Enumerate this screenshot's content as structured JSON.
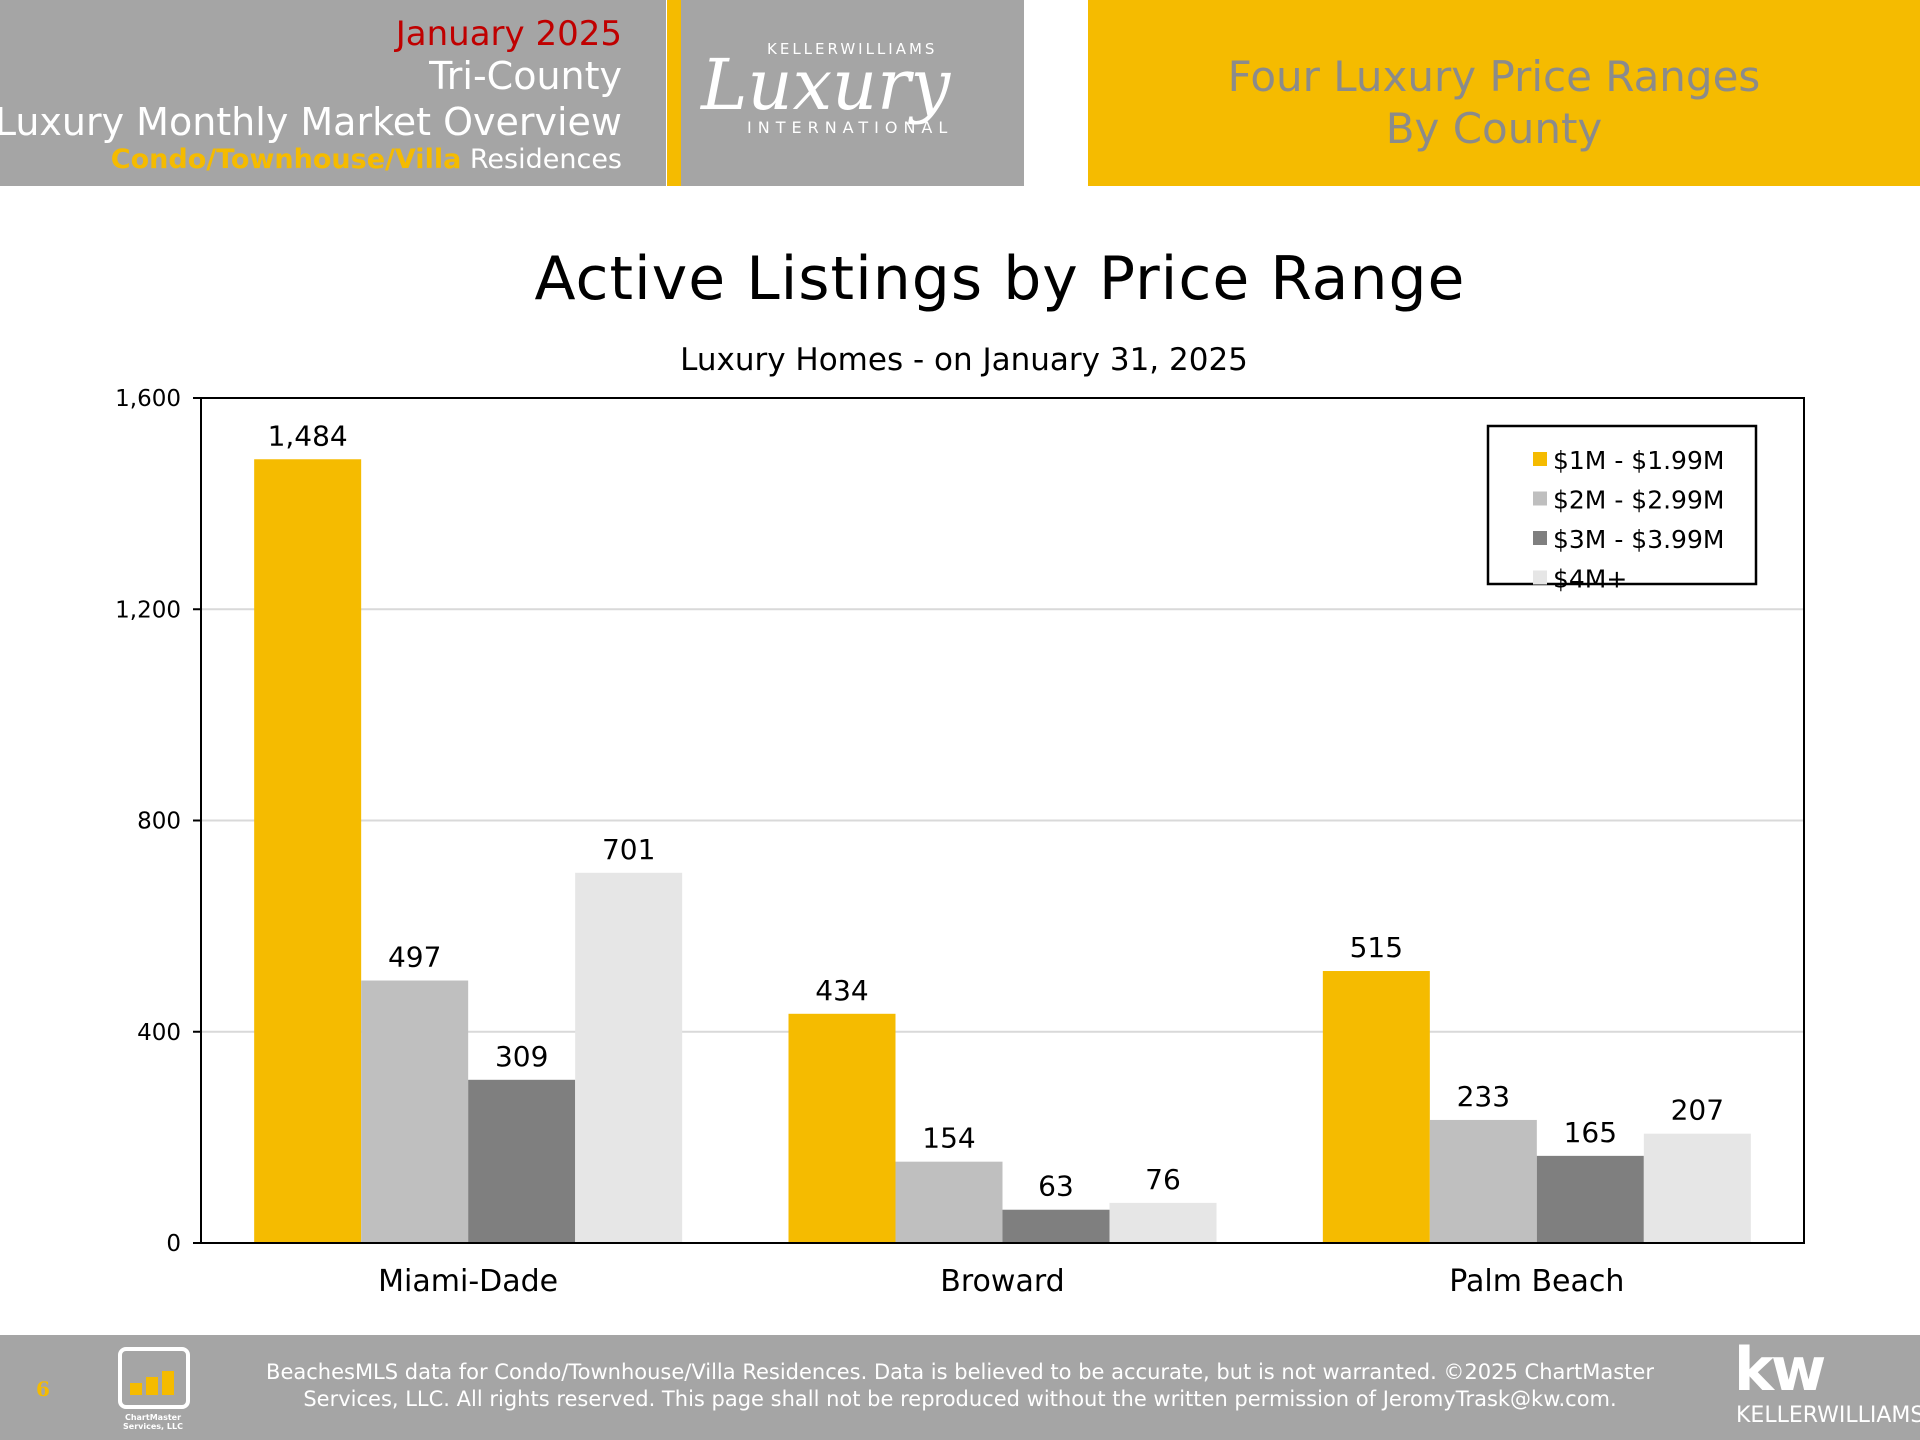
{
  "header": {
    "month": "January 2025",
    "region": "Tri-County",
    "report_title": "Luxury Monthly Market Overview",
    "property_type_accent": "Condo/Townhouse/Villa",
    "property_type_suffix": " Residences",
    "logo": {
      "top": "KELLERWILLIAMS",
      "script": "Luxury",
      "bottom": "INTERNATIONAL"
    },
    "section_title_line1": "Four Luxury Price Ranges",
    "section_title_line2": "By County"
  },
  "colors": {
    "accent": "#f5bb00",
    "header_gray": "#a5a5a5",
    "month_red": "#c00000"
  },
  "chart_data": {
    "type": "bar",
    "title": "Active Listings by Price Range",
    "subtitle": "Luxury Homes - on January 31, 2025",
    "categories": [
      "Miami-Dade",
      "Broward",
      "Palm Beach"
    ],
    "series": [
      {
        "name": "$1M - $1.99M",
        "color": "#f5bb00",
        "values": [
          1484,
          434,
          515
        ],
        "labels": [
          "1,484",
          "434",
          "515"
        ]
      },
      {
        "name": "$2M - $2.99M",
        "color": "#bfbfbf",
        "values": [
          497,
          154,
          233
        ],
        "labels": [
          "497",
          "154",
          "233"
        ]
      },
      {
        "name": "$3M - $3.99M",
        "color": "#7f7f7f",
        "values": [
          309,
          63,
          165
        ],
        "labels": [
          "309",
          "63",
          "165"
        ]
      },
      {
        "name": "$4M+",
        "color": "#e6e6e6",
        "values": [
          701,
          76,
          207
        ],
        "labels": [
          "701",
          "76",
          "207"
        ]
      }
    ],
    "ylim": [
      0,
      1600
    ],
    "yticks": [
      0,
      400,
      800,
      1200,
      1600
    ],
    "ytick_labels": [
      "0",
      "400",
      "800",
      "1,200",
      "1,600"
    ],
    "grid": true,
    "legend_position": "top-right",
    "xlabel": "",
    "ylabel": ""
  },
  "footer": {
    "page_number": "6",
    "chartmaster_logo_text": "ChartMaster Services, LLC",
    "disclaimer_line1": "BeachesMLS data for Condo/Townhouse/Villa Residences.  Data is believed to be accurate, but is not warranted.   ©2025  ChartMaster",
    "disclaimer_line2": "Services, LLC.  All rights reserved. This page shall not be reproduced without the written permission of JeromyTrask@kw.com.",
    "kw_logo_big": "kw",
    "kw_logo_small": "KELLERWILLIAMS."
  }
}
